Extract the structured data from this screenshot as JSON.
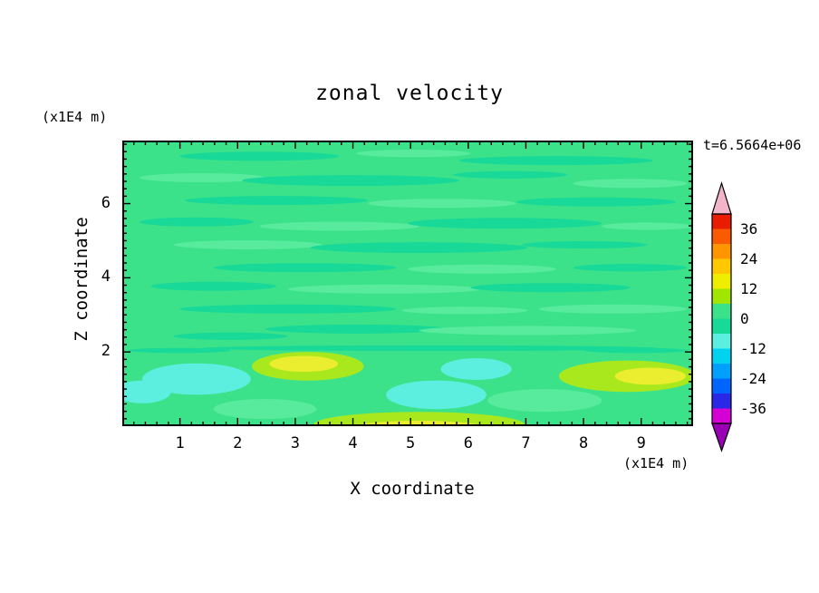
{
  "title": "zonal velocity",
  "timestamp": "t=6.5664e+06",
  "axes": {
    "x_label": "X coordinate",
    "x_unit": "(x1E4 m)",
    "y_label": "Z coordinate",
    "y_unit": "(x1E4 m)",
    "x_tick_labels": [
      "1",
      "2",
      "3",
      "4",
      "5",
      "6",
      "7",
      "8",
      "9"
    ],
    "y_tick_labels": [
      "2",
      "4",
      "6"
    ]
  },
  "chart_data": {
    "type": "heatmap",
    "subtype": "filled-contour",
    "title": "zonal velocity",
    "xlabel": "X coordinate (x1E4 m)",
    "ylabel": "Z coordinate (x1E4 m)",
    "time_annotation": "t=6.5664e+06",
    "x_range": [
      0,
      9.9
    ],
    "y_range": [
      0,
      7.7
    ],
    "x_major_ticks": [
      1,
      2,
      3,
      4,
      5,
      6,
      7,
      8,
      9
    ],
    "y_major_ticks": [
      2,
      4,
      6
    ],
    "minor_tick_step": 0.2,
    "grid": false,
    "contour_interval": 6,
    "levels": [
      -42,
      -36,
      -30,
      -24,
      -18,
      -12,
      -6,
      0,
      6,
      12,
      18,
      24,
      30,
      36,
      42
    ],
    "colorbar": {
      "position": "right",
      "labels": [
        "36",
        "24",
        "12",
        "0",
        "-12",
        "-24",
        "-36"
      ],
      "label_values": [
        36,
        24,
        12,
        0,
        -12,
        -24,
        -36
      ],
      "segment_colors_top_to_bottom": [
        "#e81c00",
        "#fa5a00",
        "#ff9600",
        "#ffc800",
        "#f0ee00",
        "#a0e600",
        "#3ce28a",
        "#19d998",
        "#5ceede",
        "#00d2f0",
        "#00a0ff",
        "#0064ff",
        "#2828e6",
        "#d400d4"
      ],
      "over_arrow_color": "#f2b4c8",
      "under_arrow_color": "#9900b4"
    },
    "palette": {
      "base": "#3ce28a",
      "g2": "#19d998",
      "g3": "#58eb9e",
      "cyan": "#5ceede",
      "yg": "#aae81e",
      "yellow": "#eaee2e"
    },
    "field_description": "Zonal velocity field dominated by values in the 0 to 6 band (green) with thin alternating -6 to 0 streaks in the interior; below z=2 there are patches reaching -12 to -6 (cyan) near x=1.3, x=5.5 and x=6.2, and patches reaching +6 to +18 (yellow-green to yellow) near x=3.2, x=5.2 (bottom edge) and x=8.8.",
    "patches": [
      [
        0.24,
        0.055,
        0.14,
        0.016,
        "g2"
      ],
      [
        0.51,
        0.045,
        0.1,
        0.013,
        "g3"
      ],
      [
        0.76,
        0.07,
        0.17,
        0.016,
        "g2"
      ],
      [
        0.14,
        0.13,
        0.11,
        0.016,
        "g3"
      ],
      [
        0.4,
        0.14,
        0.19,
        0.019,
        "g2"
      ],
      [
        0.68,
        0.12,
        0.1,
        0.013,
        "g2"
      ],
      [
        0.89,
        0.15,
        0.1,
        0.016,
        "g3"
      ],
      [
        0.27,
        0.21,
        0.16,
        0.016,
        "g2"
      ],
      [
        0.56,
        0.22,
        0.13,
        0.016,
        "g3"
      ],
      [
        0.83,
        0.215,
        0.14,
        0.016,
        "g2"
      ],
      [
        0.13,
        0.285,
        0.1,
        0.016,
        "g2"
      ],
      [
        0.38,
        0.3,
        0.14,
        0.016,
        "g3"
      ],
      [
        0.67,
        0.29,
        0.17,
        0.019,
        "g2"
      ],
      [
        0.92,
        0.3,
        0.08,
        0.013,
        "g3"
      ],
      [
        0.22,
        0.365,
        0.13,
        0.016,
        "g3"
      ],
      [
        0.52,
        0.375,
        0.19,
        0.019,
        "g2"
      ],
      [
        0.81,
        0.365,
        0.11,
        0.013,
        "g2"
      ],
      [
        0.32,
        0.445,
        0.16,
        0.016,
        "g2"
      ],
      [
        0.63,
        0.45,
        0.13,
        0.016,
        "g3"
      ],
      [
        0.89,
        0.445,
        0.1,
        0.013,
        "g2"
      ],
      [
        0.16,
        0.51,
        0.11,
        0.016,
        "g2"
      ],
      [
        0.46,
        0.52,
        0.17,
        0.016,
        "g3"
      ],
      [
        0.75,
        0.515,
        0.14,
        0.016,
        "g2"
      ],
      [
        0.29,
        0.59,
        0.19,
        0.016,
        "g2"
      ],
      [
        0.6,
        0.595,
        0.11,
        0.013,
        "g3"
      ],
      [
        0.86,
        0.59,
        0.13,
        0.016,
        "g3"
      ],
      [
        0.41,
        0.66,
        0.16,
        0.016,
        "g2"
      ],
      [
        0.71,
        0.665,
        0.19,
        0.016,
        "g3"
      ],
      [
        0.19,
        0.685,
        0.1,
        0.013,
        "g2"
      ],
      [
        0.54,
        0.727,
        0.4,
        0.01,
        "g2"
      ],
      [
        0.1,
        0.735,
        0.09,
        0.009,
        "g2"
      ],
      [
        0.9,
        0.735,
        0.09,
        0.009,
        "g2"
      ],
      [
        0.13,
        0.835,
        0.095,
        0.055,
        "cyan"
      ],
      [
        0.035,
        0.88,
        0.05,
        0.04,
        "cyan"
      ],
      [
        0.55,
        0.89,
        0.088,
        0.05,
        "cyan"
      ],
      [
        0.62,
        0.8,
        0.062,
        0.038,
        "cyan"
      ],
      [
        0.74,
        0.91,
        0.1,
        0.04,
        "g3"
      ],
      [
        0.25,
        0.94,
        0.09,
        0.035,
        "g3"
      ],
      [
        0.325,
        0.79,
        0.098,
        0.05,
        "yg"
      ],
      [
        0.318,
        0.782,
        0.06,
        0.028,
        "yellow"
      ],
      [
        0.52,
        0.995,
        0.185,
        0.045,
        "yg"
      ],
      [
        0.52,
        1.005,
        0.115,
        0.024,
        "yellow"
      ],
      [
        0.885,
        0.825,
        0.12,
        0.055,
        "yg"
      ],
      [
        0.925,
        0.825,
        0.062,
        0.03,
        "yellow"
      ]
    ]
  }
}
